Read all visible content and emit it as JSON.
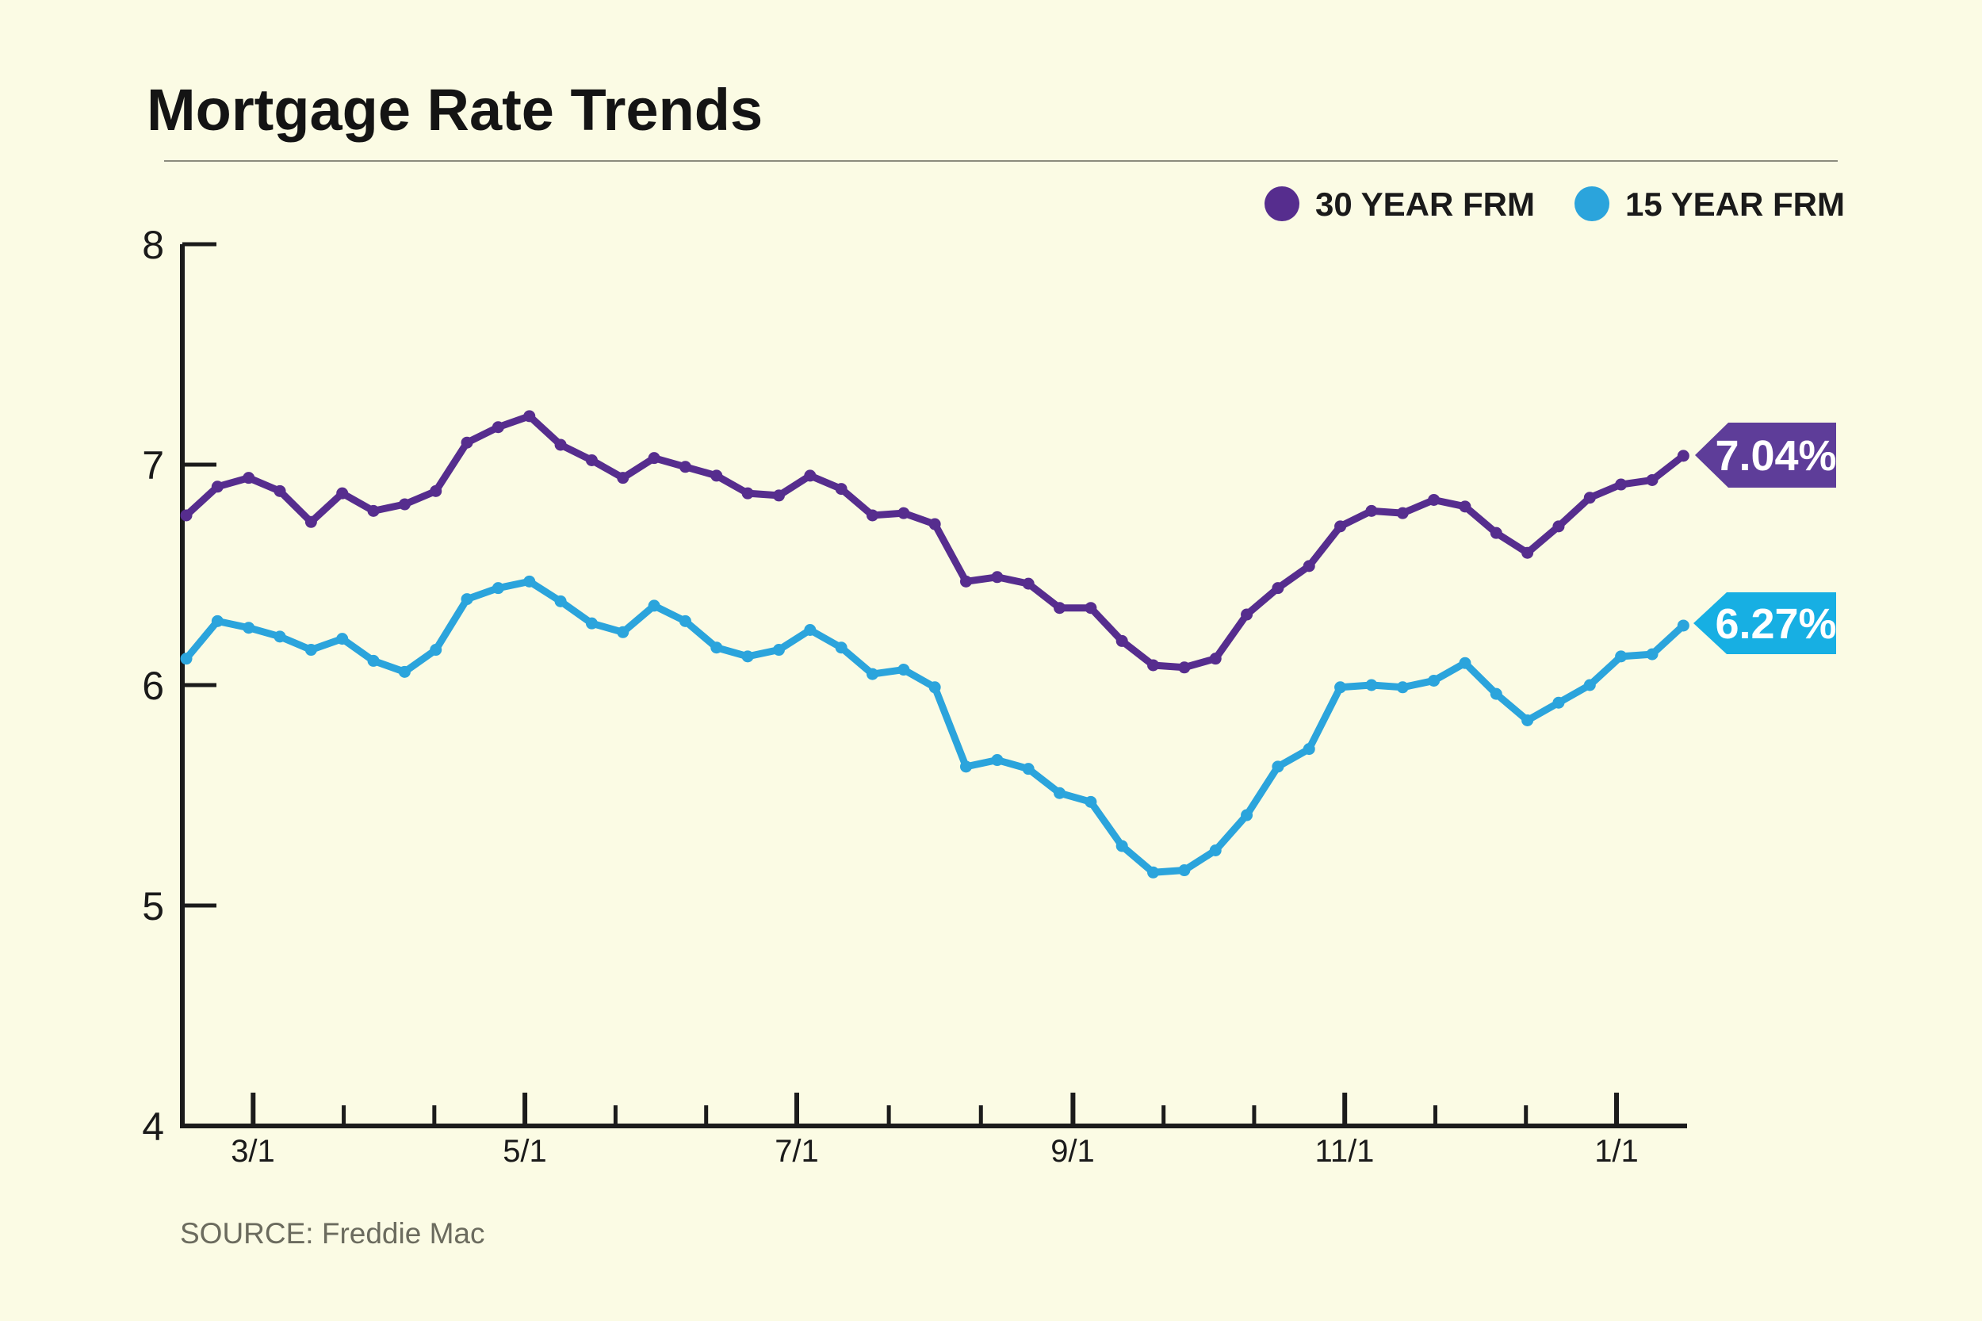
{
  "page": {
    "background": "#FBFBE4"
  },
  "header": {
    "title": "Mortgage Rate Trends"
  },
  "legend": {
    "items": [
      {
        "label": "30 YEAR FRM",
        "color": "#562D8E"
      },
      {
        "label": "15 YEAR FRM",
        "color": "#2BA4DC"
      }
    ]
  },
  "source": {
    "text": "SOURCE: Freddie Mac"
  },
  "chart_data": {
    "type": "line",
    "title": "Mortgage Rate Trends",
    "xlabel": "",
    "ylabel": "",
    "ylim": [
      4,
      8
    ],
    "grid": false,
    "legend_position": "top-right",
    "x_tick_labels": [
      "3/1",
      "5/1",
      "7/1",
      "9/1",
      "11/1",
      "1/1"
    ],
    "y_tick_labels": [
      "8",
      "7",
      "6",
      "5",
      "4"
    ],
    "series": [
      {
        "name": "30 YEAR FRM",
        "color": "#562D8E",
        "end_label": "7.04%",
        "end_label_bg": "#5E3D99",
        "values": [
          6.77,
          6.9,
          6.94,
          6.88,
          6.74,
          6.87,
          6.79,
          6.82,
          6.88,
          7.1,
          7.17,
          7.22,
          7.09,
          7.02,
          6.94,
          7.03,
          6.99,
          6.95,
          6.87,
          6.86,
          6.95,
          6.89,
          6.77,
          6.78,
          6.73,
          6.47,
          6.49,
          6.46,
          6.35,
          6.35,
          6.2,
          6.09,
          6.08,
          6.12,
          6.32,
          6.44,
          6.54,
          6.72,
          6.79,
          6.78,
          6.84,
          6.81,
          6.69,
          6.6,
          6.72,
          6.85,
          6.91,
          6.93,
          7.04
        ]
      },
      {
        "name": "15 YEAR FRM",
        "color": "#2BA4DC",
        "end_label": "6.27%",
        "end_label_bg": "#17AFE3",
        "values": [
          6.12,
          6.29,
          6.26,
          6.22,
          6.16,
          6.21,
          6.11,
          6.06,
          6.16,
          6.39,
          6.44,
          6.47,
          6.38,
          6.28,
          6.24,
          6.36,
          6.29,
          6.17,
          6.13,
          6.16,
          6.25,
          6.17,
          6.05,
          6.07,
          5.99,
          5.63,
          5.66,
          5.62,
          5.51,
          5.47,
          5.27,
          5.15,
          5.16,
          5.25,
          5.41,
          5.63,
          5.71,
          5.99,
          6.0,
          5.99,
          6.02,
          6.1,
          5.96,
          5.84,
          5.92,
          6.0,
          6.13,
          6.14,
          6.27
        ]
      }
    ]
  }
}
